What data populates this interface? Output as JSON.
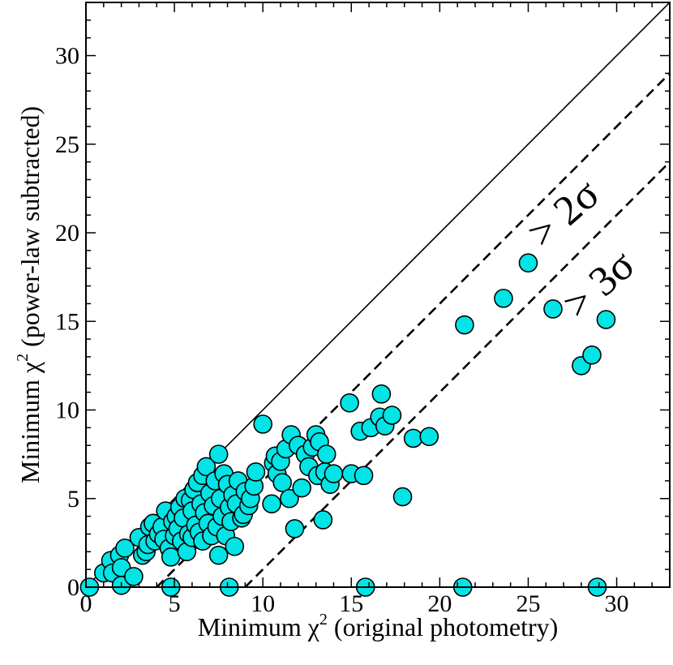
{
  "chart_data": {
    "type": "scatter",
    "xlabel": "Minimum  χ² (original photometry)",
    "xlabel_parts": {
      "prefix": "Minimum  χ",
      "sup": "2",
      "suffix": " (original photometry)"
    },
    "ylabel": "Minimum χ² (power-law subtracted)",
    "ylabel_parts": {
      "prefix": "Minimum χ",
      "sup": "2",
      "suffix": " (power-law subtracted)"
    },
    "xlim": [
      0,
      33
    ],
    "ylim": [
      0,
      33
    ],
    "xticks": [
      0,
      5,
      10,
      15,
      20,
      25,
      30
    ],
    "yticks": [
      0,
      5,
      10,
      15,
      20,
      25,
      30
    ],
    "xtick_labels": [
      "0",
      "5",
      "10",
      "15",
      "20",
      "25",
      "30"
    ],
    "ytick_labels": [
      "0",
      "5",
      "10",
      "15",
      "20",
      "25",
      "30"
    ],
    "grid": false,
    "marker_color": "#00e5e5",
    "marker_edge": "#000000",
    "reference_lines": [
      {
        "name": "one-to-one",
        "style": "solid",
        "x": [
          0,
          33
        ],
        "y": [
          0,
          33
        ]
      },
      {
        "name": "2-sigma",
        "style": "dashed",
        "x": [
          4,
          33
        ],
        "y": [
          0,
          29
        ]
      },
      {
        "name": "3-sigma",
        "style": "dashed",
        "x": [
          9,
          33
        ],
        "y": [
          0,
          24
        ]
      }
    ],
    "annotations": [
      {
        "text": "> 2σ",
        "x": 27.5,
        "y": 20.5,
        "rotation": -41
      },
      {
        "text": "> 3σ",
        "x": 29.5,
        "y": 16.5,
        "rotation": -41
      }
    ],
    "series": [
      {
        "name": "sources",
        "points": [
          [
            0.2,
            0.0
          ],
          [
            4.8,
            0.0
          ],
          [
            8.1,
            0.0
          ],
          [
            15.8,
            0.0
          ],
          [
            21.3,
            0.0
          ],
          [
            28.9,
            0.0
          ],
          [
            1.0,
            0.8
          ],
          [
            1.4,
            1.5
          ],
          [
            1.5,
            0.8
          ],
          [
            1.9,
            1.8
          ],
          [
            2.0,
            1.1
          ],
          [
            2.0,
            0.1
          ],
          [
            2.2,
            2.2
          ],
          [
            2.7,
            0.6
          ],
          [
            3.0,
            2.8
          ],
          [
            3.2,
            1.8
          ],
          [
            3.4,
            2.0
          ],
          [
            3.5,
            2.4
          ],
          [
            3.6,
            3.4
          ],
          [
            3.8,
            3.6
          ],
          [
            3.9,
            2.6
          ],
          [
            4.1,
            3.0
          ],
          [
            4.3,
            3.4
          ],
          [
            4.4,
            2.7
          ],
          [
            4.5,
            4.3
          ],
          [
            4.7,
            2.2
          ],
          [
            4.8,
            1.7
          ],
          [
            4.9,
            3.7
          ],
          [
            5.0,
            2.9
          ],
          [
            5.1,
            4.0
          ],
          [
            5.2,
            3.3
          ],
          [
            5.3,
            4.5
          ],
          [
            5.4,
            2.6
          ],
          [
            5.5,
            3.9
          ],
          [
            5.6,
            5.0
          ],
          [
            5.7,
            2.0
          ],
          [
            5.8,
            3.0
          ],
          [
            5.9,
            4.9
          ],
          [
            6.0,
            2.8
          ],
          [
            6.0,
            4.3
          ],
          [
            6.1,
            5.5
          ],
          [
            6.2,
            3.5
          ],
          [
            6.3,
            5.9
          ],
          [
            6.4,
            3.1
          ],
          [
            6.5,
            4.7
          ],
          [
            6.6,
            2.6
          ],
          [
            6.6,
            6.3
          ],
          [
            6.7,
            4.2
          ],
          [
            6.8,
            6.8
          ],
          [
            6.9,
            3.6
          ],
          [
            7.0,
            5.3
          ],
          [
            7.1,
            2.9
          ],
          [
            7.2,
            4.6
          ],
          [
            7.3,
            6.0
          ],
          [
            7.4,
            3.4
          ],
          [
            7.5,
            7.5
          ],
          [
            7.5,
            1.8
          ],
          [
            7.6,
            5.0
          ],
          [
            7.7,
            4.0
          ],
          [
            7.8,
            6.4
          ],
          [
            7.9,
            2.9
          ],
          [
            8.0,
            5.8
          ],
          [
            8.1,
            4.5
          ],
          [
            8.2,
            3.7
          ],
          [
            8.3,
            5.2
          ],
          [
            8.4,
            2.3
          ],
          [
            8.5,
            4.7
          ],
          [
            8.6,
            6.0
          ],
          [
            8.8,
            3.9
          ],
          [
            8.9,
            4.1
          ],
          [
            9.0,
            5.4
          ],
          [
            9.2,
            4.6
          ],
          [
            9.3,
            5.0
          ],
          [
            9.5,
            5.7
          ],
          [
            9.6,
            6.5
          ],
          [
            10.0,
            9.2
          ],
          [
            10.5,
            4.7
          ],
          [
            10.6,
            7.0
          ],
          [
            10.7,
            7.4
          ],
          [
            10.8,
            6.4
          ],
          [
            11.0,
            7.1
          ],
          [
            11.1,
            5.9
          ],
          [
            11.3,
            7.8
          ],
          [
            11.5,
            5.0
          ],
          [
            11.6,
            8.6
          ],
          [
            11.8,
            3.3
          ],
          [
            12.0,
            8.0
          ],
          [
            12.2,
            5.6
          ],
          [
            12.4,
            7.5
          ],
          [
            12.6,
            6.8
          ],
          [
            12.8,
            7.9
          ],
          [
            13.0,
            8.6
          ],
          [
            13.1,
            6.3
          ],
          [
            13.2,
            8.2
          ],
          [
            13.4,
            3.8
          ],
          [
            13.5,
            6.5
          ],
          [
            13.6,
            7.5
          ],
          [
            13.8,
            5.8
          ],
          [
            14.0,
            6.4
          ],
          [
            14.9,
            10.4
          ],
          [
            15.0,
            6.4
          ],
          [
            15.5,
            8.8
          ],
          [
            15.7,
            6.3
          ],
          [
            16.1,
            9.0
          ],
          [
            16.7,
            10.9
          ],
          [
            16.6,
            9.6
          ],
          [
            16.9,
            9.1
          ],
          [
            17.3,
            9.7
          ],
          [
            17.9,
            5.1
          ],
          [
            18.5,
            8.4
          ],
          [
            19.4,
            8.5
          ],
          [
            21.4,
            14.8
          ],
          [
            23.6,
            16.3
          ],
          [
            25.0,
            18.3
          ],
          [
            26.4,
            15.7
          ],
          [
            28.0,
            12.5
          ],
          [
            28.6,
            13.1
          ],
          [
            29.4,
            15.1
          ]
        ]
      }
    ]
  }
}
